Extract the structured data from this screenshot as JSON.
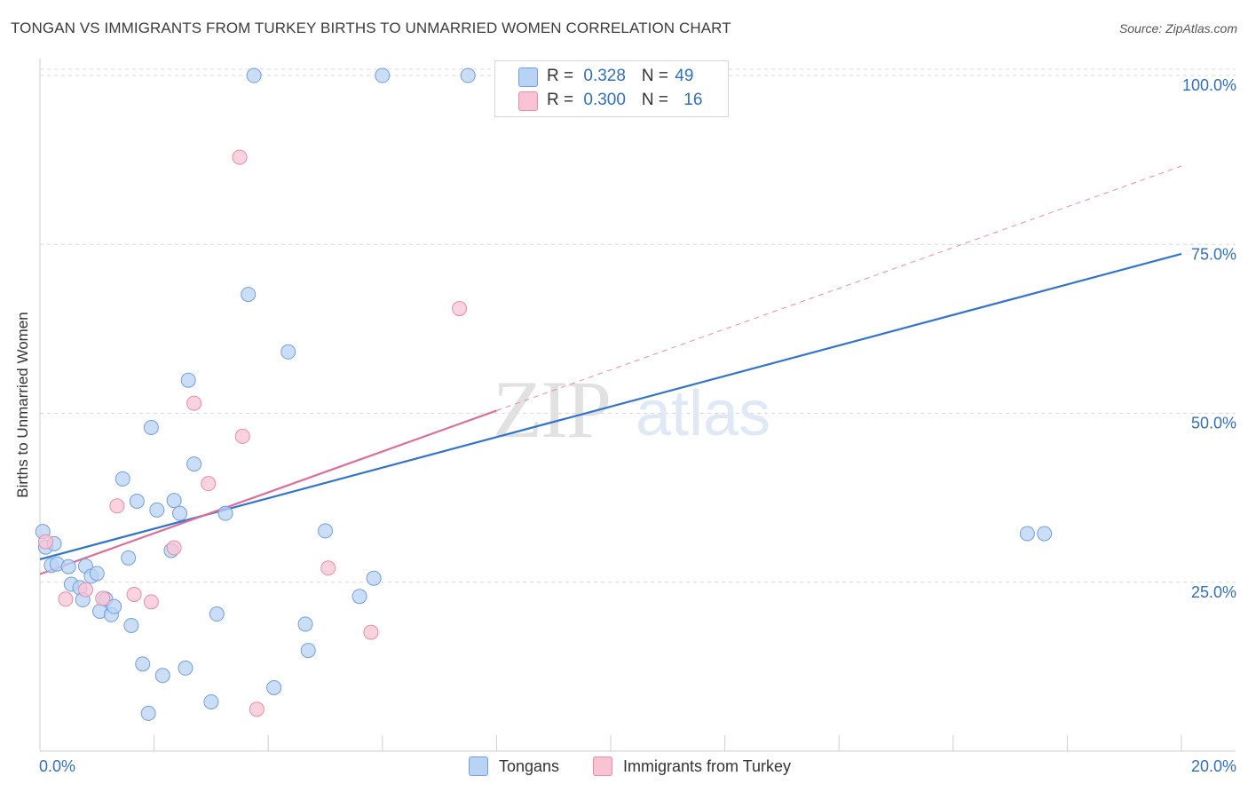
{
  "header": {
    "title": "TONGAN VS IMMIGRANTS FROM TURKEY BIRTHS TO UNMARRIED WOMEN CORRELATION CHART",
    "source": "Source: ZipAtlas.com"
  },
  "legend": {
    "series1": {
      "r_label": "R = ",
      "r_value": "0.328",
      "n_label": "N = ",
      "n_value": "49"
    },
    "series2": {
      "r_label": "R = ",
      "r_value": "0.300",
      "n_label": "N = ",
      "n_value": "16"
    }
  },
  "watermark": {
    "zip": "ZIP",
    "atlas": "atlas"
  },
  "colors": {
    "tongans_fill": "#b9d3f5",
    "tongans_stroke": "#6f9fe0",
    "tongans_line": "#2f74d0",
    "turkey_fill": "#f8c4d4",
    "turkey_stroke": "#ec8aa8",
    "turkey_line": "#e06d96",
    "axis_label": "#2f6fc4",
    "grid": "#d9d9d9"
  },
  "chart_data": {
    "type": "scatter",
    "title": "TONGAN VS IMMIGRANTS FROM TURKEY BIRTHS TO UNMARRIED WOMEN CORRELATION CHART",
    "xlabel": "",
    "ylabel": "Births to Unmarried Women",
    "xlim": [
      0,
      20
    ],
    "ylim": [
      0,
      102.5
    ],
    "x_tick_labels": [
      "0.0%",
      "20.0%"
    ],
    "y_tick_labels": [
      "25.0%",
      "50.0%",
      "75.0%",
      "100.0%"
    ],
    "y_tick_values": [
      25,
      50,
      75,
      100
    ],
    "grid": true,
    "legend_position": "top-center",
    "series": [
      {
        "name": "Tongans",
        "legend_label": "Tongans",
        "r": 0.328,
        "n": 49,
        "points": [
          [
            0.05,
            32.5
          ],
          [
            0.1,
            30.2
          ],
          [
            0.25,
            30.7
          ],
          [
            0.2,
            27.5
          ],
          [
            0.3,
            27.7
          ],
          [
            0.5,
            27.3
          ],
          [
            0.55,
            24.7
          ],
          [
            0.7,
            24.2
          ],
          [
            0.75,
            22.4
          ],
          [
            0.8,
            27.4
          ],
          [
            0.9,
            25.9
          ],
          [
            1.0,
            26.3
          ],
          [
            1.05,
            20.7
          ],
          [
            1.15,
            22.5
          ],
          [
            1.25,
            20.2
          ],
          [
            1.3,
            21.4
          ],
          [
            1.45,
            40.3
          ],
          [
            1.55,
            28.6
          ],
          [
            1.6,
            18.6
          ],
          [
            1.7,
            37.0
          ],
          [
            1.8,
            12.9
          ],
          [
            1.9,
            5.6
          ],
          [
            1.95,
            47.9
          ],
          [
            2.05,
            35.7
          ],
          [
            2.15,
            11.2
          ],
          [
            2.3,
            29.7
          ],
          [
            2.35,
            37.1
          ],
          [
            2.45,
            35.2
          ],
          [
            2.55,
            12.3
          ],
          [
            2.6,
            54.9
          ],
          [
            2.7,
            42.5
          ],
          [
            3.0,
            7.3
          ],
          [
            3.1,
            20.3
          ],
          [
            3.25,
            35.2
          ],
          [
            3.75,
            100.0
          ],
          [
            3.65,
            67.6
          ],
          [
            4.1,
            9.4
          ],
          [
            4.35,
            59.1
          ],
          [
            4.65,
            18.8
          ],
          [
            4.7,
            14.9
          ],
          [
            5.0,
            32.6
          ],
          [
            5.6,
            22.9
          ],
          [
            5.85,
            25.6
          ],
          [
            6.0,
            100.0
          ],
          [
            7.5,
            100.0
          ],
          [
            8.2,
            100.0
          ],
          [
            8.25,
            100.0
          ],
          [
            17.3,
            32.2
          ],
          [
            17.6,
            32.2
          ]
        ],
        "trend": {
          "x": [
            0,
            20
          ],
          "y": [
            28.4,
            73.6
          ]
        }
      },
      {
        "name": "Immigrants from Turkey",
        "legend_label": "Immigrants from Turkey",
        "r": 0.3,
        "n": 16,
        "points": [
          [
            0.1,
            31.0
          ],
          [
            0.45,
            22.5
          ],
          [
            0.8,
            23.9
          ],
          [
            1.1,
            22.6
          ],
          [
            1.35,
            36.3
          ],
          [
            1.65,
            23.2
          ],
          [
            1.95,
            22.1
          ],
          [
            2.35,
            30.1
          ],
          [
            2.7,
            51.5
          ],
          [
            2.95,
            39.6
          ],
          [
            3.5,
            87.9
          ],
          [
            3.55,
            46.6
          ],
          [
            3.8,
            6.2
          ],
          [
            5.05,
            27.1
          ],
          [
            5.8,
            17.6
          ],
          [
            7.35,
            65.5
          ]
        ],
        "trend": {
          "x": [
            0,
            8.0
          ],
          "y": [
            26.2,
            50.4
          ]
        },
        "trend_extension": {
          "x": [
            8.0,
            20
          ],
          "y": [
            50.4,
            86.6
          ]
        }
      }
    ]
  },
  "bottom_legend": {
    "item1": "Tongans",
    "item2": "Immigrants from Turkey"
  }
}
